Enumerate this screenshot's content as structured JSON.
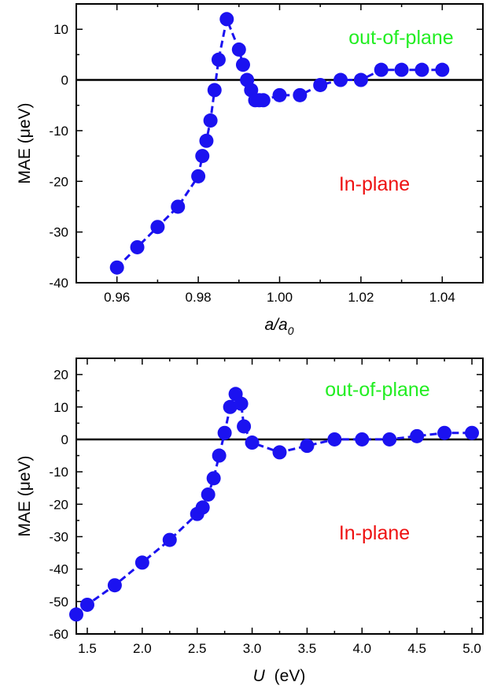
{
  "colors": {
    "series": "#1b12f0",
    "out_of_plane": "#22ee22",
    "in_plane": "#ee1111",
    "zero_line": "#000000"
  },
  "chart_data": [
    {
      "type": "line",
      "marker": "circle",
      "line_style": "dashed",
      "xlabel": "a/a0",
      "xlabel_parts": {
        "main": "a/a",
        "sub": "0"
      },
      "ylabel": "MAE (μeV)",
      "xlim": [
        0.95,
        1.05
      ],
      "ylim": [
        -40,
        15
      ],
      "xticks": [
        0.96,
        0.98,
        1.0,
        1.02,
        1.04
      ],
      "xtick_labels": [
        "0.96",
        "0.98",
        "1.00",
        "1.02",
        "1.04"
      ],
      "yticks": [
        -40,
        -30,
        -20,
        -10,
        0,
        10
      ],
      "ytick_labels": [
        "-40",
        "-30",
        "-20",
        "-10",
        "0",
        "10"
      ],
      "zero_line": true,
      "grid": false,
      "annotations": [
        {
          "text": "out-of-plane",
          "x": 1.025,
          "y": 9,
          "color": "#22ee22"
        },
        {
          "text": "In-plane",
          "x": 1.012,
          "y": -20,
          "color": "#ee1111"
        }
      ],
      "x": [
        0.96,
        0.965,
        0.97,
        0.975,
        0.98,
        0.981,
        0.982,
        0.983,
        0.984,
        0.985,
        0.987,
        0.99,
        0.991,
        0.992,
        0.993,
        0.994,
        0.995,
        0.996,
        1.0,
        1.005,
        1.01,
        1.015,
        1.02,
        1.025,
        1.03,
        1.035,
        1.04
      ],
      "y": [
        -37,
        -33,
        -29,
        -25,
        -19,
        -15,
        -12,
        -8,
        -2,
        4,
        12,
        6,
        3,
        0,
        -2,
        -4,
        -4,
        -4,
        -3,
        -3,
        -1,
        0,
        0,
        2,
        2,
        2,
        2
      ]
    },
    {
      "type": "line",
      "marker": "circle",
      "line_style": "dashed",
      "xlabel": "U (eV)",
      "xlabel_parts": {
        "main": "U",
        "rest": "(eV)"
      },
      "ylabel": "MAE (μeV)",
      "xlim": [
        1.4,
        5.1
      ],
      "ylim": [
        -60,
        25
      ],
      "xticks": [
        1.5,
        2.0,
        2.5,
        3.0,
        3.5,
        4.0,
        4.5,
        5.0
      ],
      "xtick_labels": [
        "1.5",
        "2.0",
        "2.5",
        "3.0",
        "3.5",
        "4.0",
        "4.5",
        "5.0"
      ],
      "yticks": [
        -60,
        -50,
        -40,
        -30,
        -20,
        -10,
        0,
        10,
        20
      ],
      "ytick_labels": [
        "-60",
        "-50",
        "-40",
        "-30",
        "-20",
        "-10",
        "0",
        "10",
        "20"
      ],
      "zero_line": true,
      "grid": false,
      "annotations": [
        {
          "text": "out-of-plane",
          "x": 4.1,
          "y": 14,
          "color": "#22ee22"
        },
        {
          "text": "In-plane",
          "x": 4.1,
          "y": -30,
          "color": "#ee1111"
        }
      ],
      "x": [
        1.4,
        1.5,
        1.75,
        2.0,
        2.25,
        2.5,
        2.55,
        2.6,
        2.65,
        2.7,
        2.75,
        2.8,
        2.85,
        2.9,
        2.925,
        3.0,
        3.25,
        3.5,
        3.75,
        4.0,
        4.25,
        4.5,
        4.75,
        5.0
      ],
      "y": [
        -54,
        -51,
        -45,
        -38,
        -31,
        -23,
        -21,
        -17,
        -12,
        -5,
        2,
        10,
        14,
        11,
        4,
        -1,
        -4,
        -2,
        0,
        0,
        0,
        1,
        2,
        2
      ]
    }
  ]
}
